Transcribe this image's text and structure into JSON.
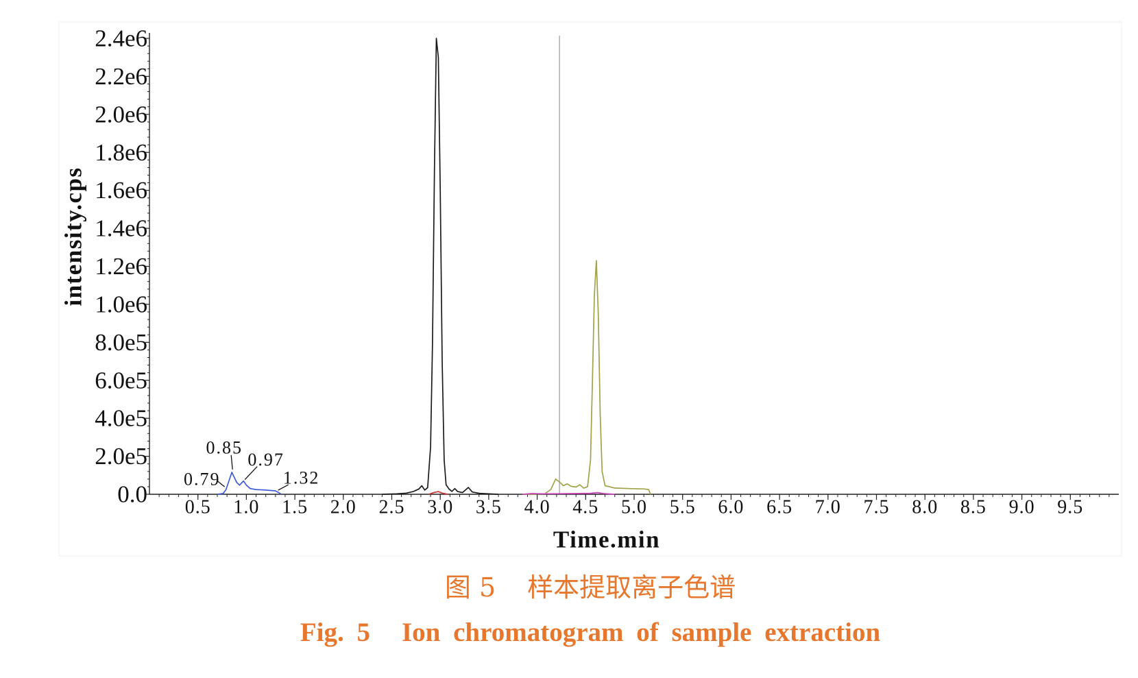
{
  "chart_data": {
    "type": "line",
    "xlabel": "Time.min",
    "ylabel": "intensity.cps",
    "xlim": [
      0,
      10
    ],
    "ylim": [
      0,
      2400000
    ],
    "grid": false,
    "x_tick_values": [
      0.5,
      1.0,
      1.5,
      2.0,
      2.5,
      3.0,
      3.5,
      4.0,
      4.5,
      5.0,
      5.5,
      6.0,
      6.5,
      7.0,
      7.5,
      8.0,
      8.5,
      9.0,
      9.5
    ],
    "x_tick_labels": [
      "0.5",
      "1.0",
      "1.5",
      "2.0",
      "2.5",
      "3.0",
      "3.5",
      "4.0",
      "4.5",
      "5.0",
      "5.5",
      "6.0",
      "6.5",
      "7.0",
      "7.5",
      "8.0",
      "8.5",
      "9.0",
      "9.5"
    ],
    "y_tick_values": [
      0,
      200000,
      400000,
      600000,
      800000,
      1000000,
      1200000,
      1400000,
      1600000,
      1800000,
      2000000,
      2200000,
      2400000
    ],
    "y_tick_labels": [
      "0.0",
      "2.0e5",
      "4.0e5",
      "6.0e5",
      "8.0e5",
      "1.0e6",
      "1.2e6",
      "1.4e6",
      "1.6e6",
      "1.8e6",
      "2.0e6",
      "2.2e6",
      "2.4e6"
    ],
    "vertical_markers": [
      4.23
    ],
    "series": [
      {
        "color": "#1b1b1b",
        "points": [
          [
            2.4,
            0
          ],
          [
            2.55,
            2000
          ],
          [
            2.65,
            6000
          ],
          [
            2.72,
            14000
          ],
          [
            2.78,
            28000
          ],
          [
            2.81,
            45000
          ],
          [
            2.84,
            22000
          ],
          [
            2.87,
            35000
          ],
          [
            2.9,
            250000
          ],
          [
            2.92,
            800000
          ],
          [
            2.94,
            1700000
          ],
          [
            2.96,
            2400000
          ],
          [
            2.98,
            2300000
          ],
          [
            3.0,
            1600000
          ],
          [
            3.02,
            700000
          ],
          [
            3.04,
            180000
          ],
          [
            3.06,
            50000
          ],
          [
            3.09,
            28000
          ],
          [
            3.12,
            15000
          ],
          [
            3.15,
            30000
          ],
          [
            3.18,
            14000
          ],
          [
            3.23,
            9000
          ],
          [
            3.29,
            36000
          ],
          [
            3.33,
            12000
          ],
          [
            3.4,
            5000
          ],
          [
            3.5,
            2000
          ],
          [
            3.6,
            0
          ]
        ]
      },
      {
        "color": "#a0a348",
        "points": [
          [
            3.85,
            0
          ],
          [
            4.08,
            3000
          ],
          [
            4.14,
            25000
          ],
          [
            4.19,
            80000
          ],
          [
            4.23,
            65000
          ],
          [
            4.27,
            45000
          ],
          [
            4.31,
            55000
          ],
          [
            4.35,
            42000
          ],
          [
            4.4,
            38000
          ],
          [
            4.44,
            50000
          ],
          [
            4.48,
            32000
          ],
          [
            4.52,
            40000
          ],
          [
            4.55,
            180000
          ],
          [
            4.57,
            600000
          ],
          [
            4.59,
            1050000
          ],
          [
            4.61,
            1230000
          ],
          [
            4.63,
            950000
          ],
          [
            4.65,
            420000
          ],
          [
            4.67,
            120000
          ],
          [
            4.7,
            45000
          ],
          [
            4.8,
            33000
          ],
          [
            4.95,
            30000
          ],
          [
            5.1,
            28000
          ],
          [
            5.15,
            25000
          ],
          [
            5.17,
            0
          ]
        ]
      },
      {
        "color": "#3f5bd6",
        "points": [
          [
            0.7,
            0
          ],
          [
            0.76,
            4000
          ],
          [
            0.79,
            25000
          ],
          [
            0.82,
            70000
          ],
          [
            0.85,
            116000
          ],
          [
            0.87,
            95000
          ],
          [
            0.9,
            62000
          ],
          [
            0.93,
            48000
          ],
          [
            0.97,
            70000
          ],
          [
            1.0,
            48000
          ],
          [
            1.04,
            30000
          ],
          [
            1.1,
            25000
          ],
          [
            1.2,
            22000
          ],
          [
            1.3,
            18000
          ],
          [
            1.33,
            10000
          ],
          [
            1.36,
            0
          ]
        ]
      },
      {
        "color": "#cc44bb",
        "points": [
          [
            3.85,
            0
          ],
          [
            3.95,
            4000
          ],
          [
            4.05,
            2500
          ],
          [
            4.2,
            3000
          ],
          [
            4.55,
            5000
          ],
          [
            4.62,
            9000
          ],
          [
            4.68,
            4000
          ],
          [
            4.8,
            0
          ]
        ]
      },
      {
        "color": "#cc3333",
        "points": [
          [
            2.88,
            0
          ],
          [
            2.94,
            10000
          ],
          [
            2.98,
            14000
          ],
          [
            3.02,
            6000
          ],
          [
            3.08,
            0
          ]
        ]
      }
    ],
    "annotations": [
      {
        "text": "0.79",
        "x": 0.79,
        "y": 25000
      },
      {
        "text": "0.85",
        "x": 0.85,
        "y": 116000
      },
      {
        "text": "0.97",
        "x": 0.97,
        "y": 70000
      },
      {
        "text": "1.32",
        "x": 1.32,
        "y": 18000
      }
    ]
  },
  "caption": {
    "color": "#e8772e",
    "cn_fig": "图 5",
    "cn_title": "样本提取离子色谱",
    "en_fig": "Fig. 5",
    "en_title": "Ion chromatogram of sample extraction"
  }
}
